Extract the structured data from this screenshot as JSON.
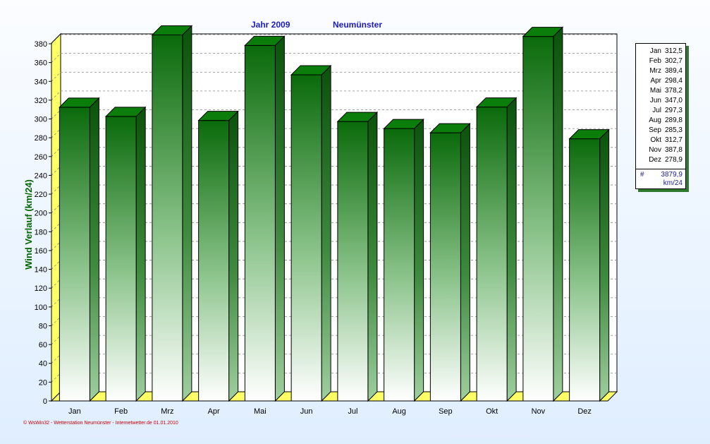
{
  "header": {
    "year_label": "Jahr  2009",
    "station": "Neumünster"
  },
  "chart_data": {
    "type": "bar",
    "categories": [
      "Jan",
      "Feb",
      "Mrz",
      "Apr",
      "Mai",
      "Jun",
      "Jul",
      "Aug",
      "Sep",
      "Okt",
      "Nov",
      "Dez"
    ],
    "values": [
      312.5,
      302.7,
      389.4,
      298.4,
      378.2,
      347.0,
      297.3,
      289.8,
      285.3,
      312.7,
      387.8,
      278.9
    ],
    "ylabel": "Wind Verlauf  (km/24)",
    "ylim": [
      0,
      390
    ],
    "yticks": [
      0,
      20,
      40,
      60,
      80,
      100,
      120,
      140,
      160,
      180,
      200,
      220,
      240,
      260,
      280,
      300,
      320,
      340,
      360,
      380
    ],
    "grid": true,
    "style": "3d-bar",
    "bar_color": "#0a6a0a",
    "legend_position": "right"
  },
  "legend": {
    "rows": [
      {
        "month": "Jan",
        "value": "312,5"
      },
      {
        "month": "Feb",
        "value": "302,7"
      },
      {
        "month": "Mrz",
        "value": "389,4"
      },
      {
        "month": "Apr",
        "value": "298,4"
      },
      {
        "month": "Mai",
        "value": "378,2"
      },
      {
        "month": "Jun",
        "value": "347,0"
      },
      {
        "month": "Jul",
        "value": "297,3"
      },
      {
        "month": "Aug",
        "value": "289,8"
      },
      {
        "month": "Sep",
        "value": "285,3"
      },
      {
        "month": "Okt",
        "value": "312,7"
      },
      {
        "month": "Nov",
        "value": "387,8"
      },
      {
        "month": "Dez",
        "value": "278,9"
      }
    ],
    "total_symbol": "#",
    "total": "3879,9",
    "unit": "km/24"
  },
  "footer": "© WsWin32 - Wetterstation Neumünster - Internetwetter.de  01.01.2010"
}
